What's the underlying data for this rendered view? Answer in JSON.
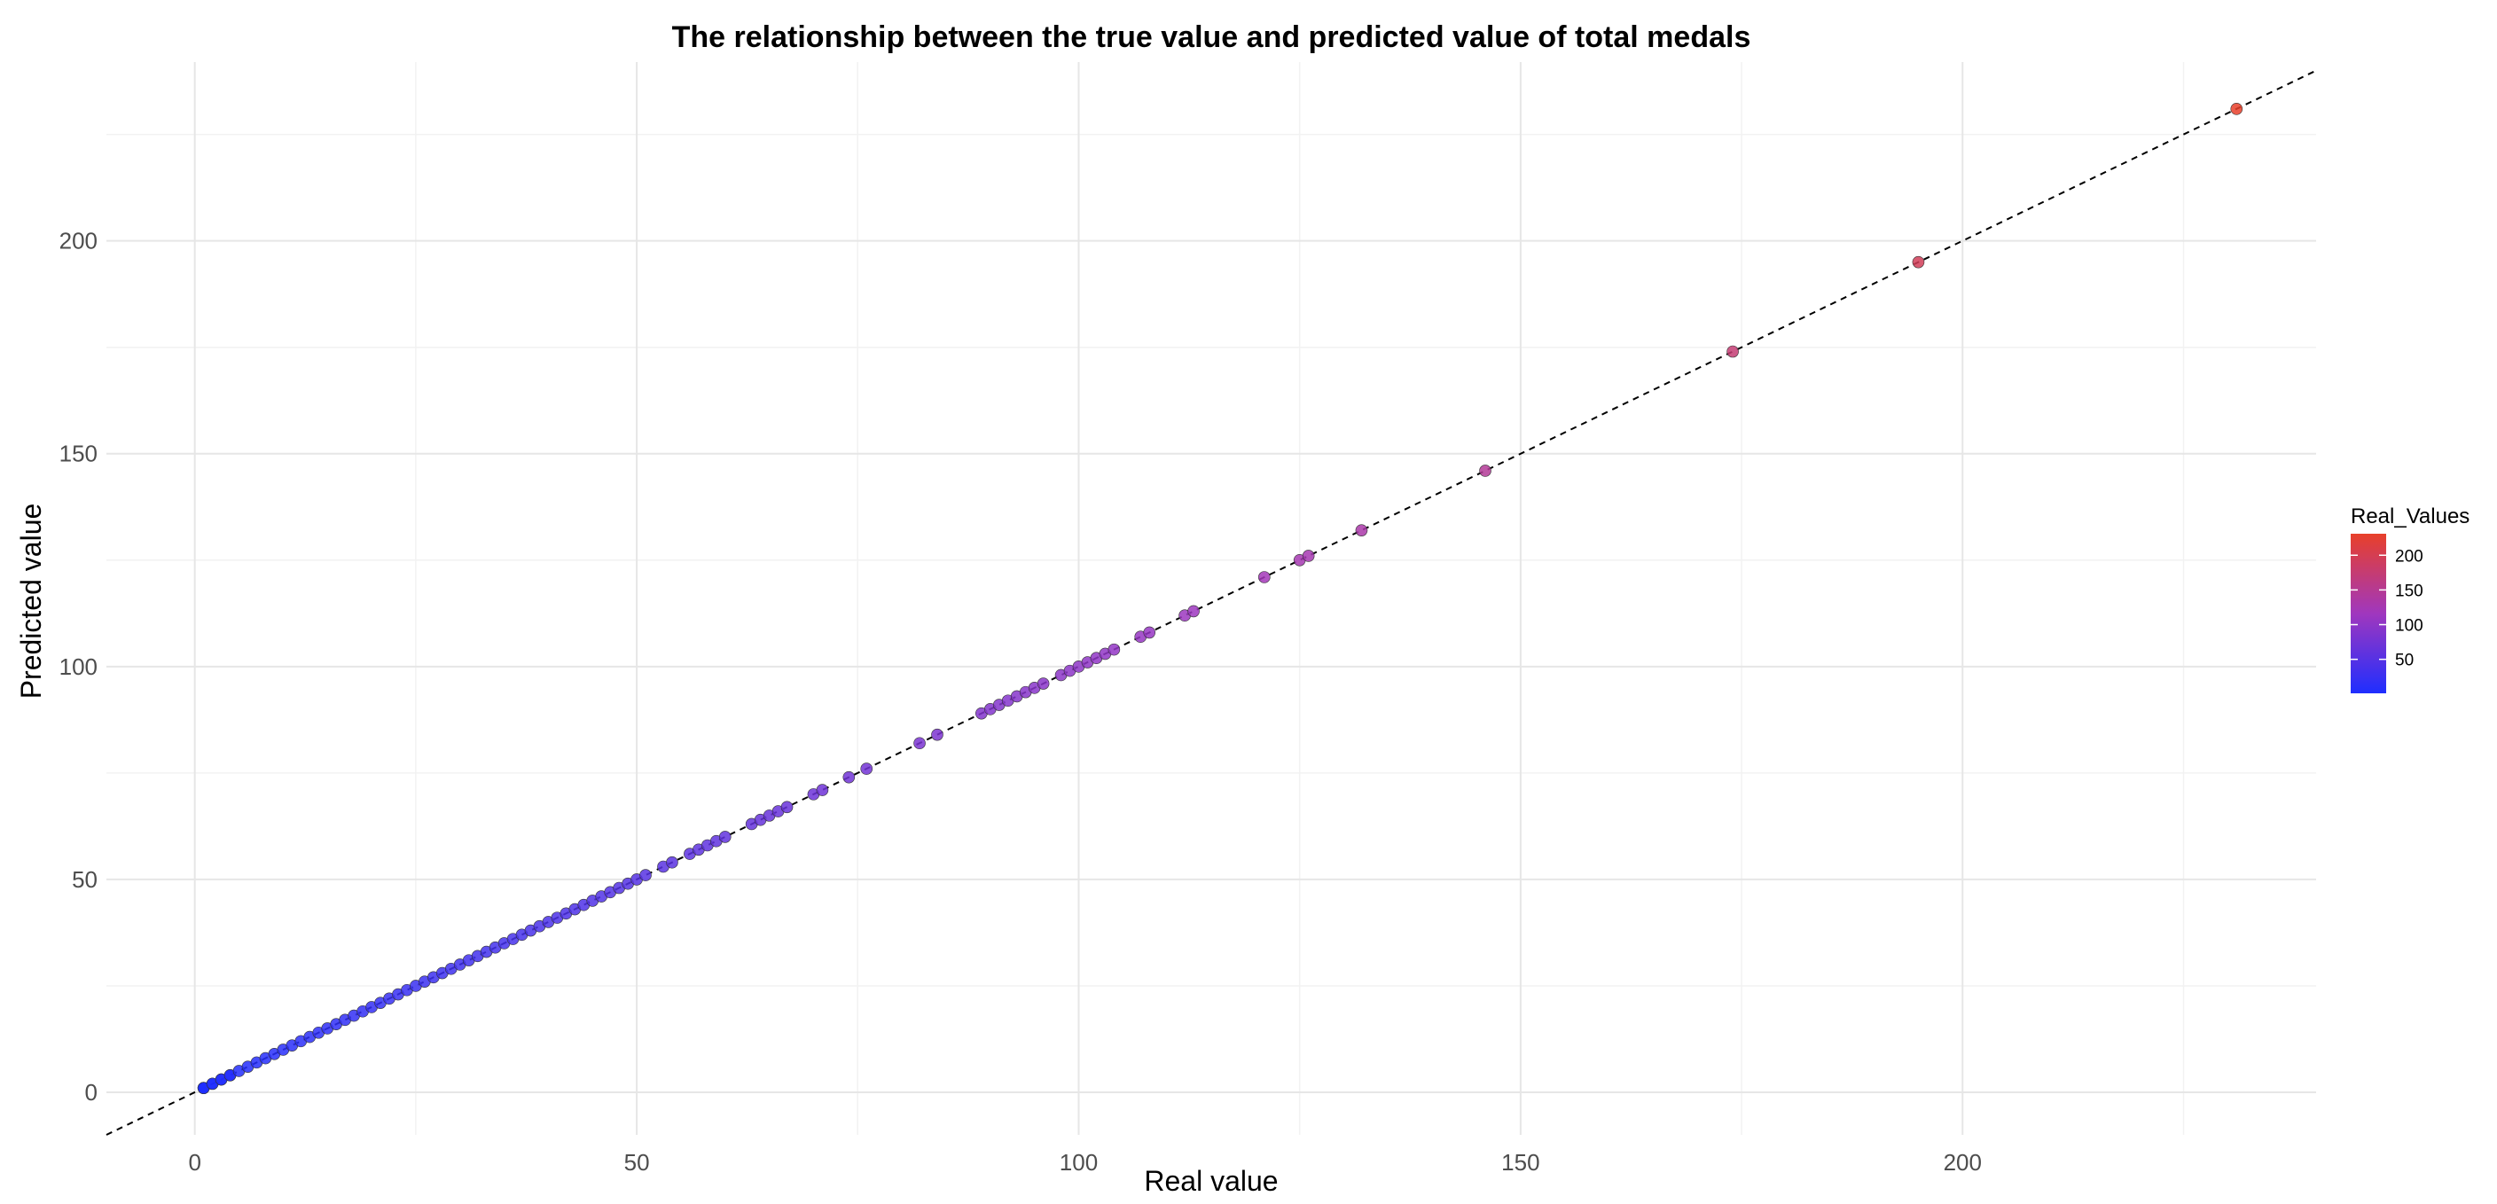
{
  "chart_data": {
    "type": "scatter",
    "title": "The relationship between the true value and predicted value of total medals",
    "xlabel": "Real value",
    "ylabel": "Predicted value",
    "xlim": [
      -10,
      240
    ],
    "ylim": [
      -10,
      242
    ],
    "x_ticks": [
      0,
      50,
      100,
      150,
      200
    ],
    "y_ticks": [
      0,
      50,
      100,
      150,
      200
    ],
    "grid": true,
    "reference_line": {
      "style": "dashed",
      "color": "#000000",
      "slope": 1,
      "intercept": 0
    },
    "legend": {
      "title": "Real_Values",
      "position": "right",
      "type": "colorbar",
      "range": [
        1,
        231
      ],
      "ticks": [
        50,
        100,
        150,
        200
      ],
      "color_low": "#1f2eff",
      "color_high": "#e8402a"
    },
    "series": [
      {
        "x": [
          1,
          1,
          1,
          2,
          2,
          3,
          3,
          4,
          4,
          5,
          6,
          7,
          8,
          9,
          10,
          11,
          12,
          13,
          14,
          15,
          16,
          17,
          18,
          19,
          20,
          21,
          22,
          23,
          24,
          25,
          26,
          27,
          28,
          29,
          30,
          31,
          32,
          33,
          34,
          35,
          36,
          37,
          38,
          39,
          40,
          41,
          42,
          43,
          44,
          45,
          46,
          47,
          48,
          49,
          50,
          51,
          53,
          54,
          56,
          57,
          58,
          59,
          60,
          63,
          64,
          65,
          66,
          67,
          70,
          71,
          74,
          76,
          82,
          84,
          89,
          90,
          91,
          92,
          93,
          94,
          95,
          96,
          98,
          99,
          100,
          101,
          102,
          103,
          104,
          107,
          108,
          112,
          113,
          121,
          125,
          126,
          132,
          146,
          174,
          195,
          231
        ],
        "y": [
          1,
          1,
          1,
          2,
          2,
          3,
          3,
          4,
          4,
          5,
          6,
          7,
          8,
          9,
          10,
          11,
          12,
          13,
          14,
          15,
          16,
          17,
          18,
          19,
          20,
          21,
          22,
          23,
          24,
          25,
          26,
          27,
          28,
          29,
          30,
          31,
          32,
          33,
          34,
          35,
          36,
          37,
          38,
          39,
          40,
          41,
          42,
          43,
          44,
          45,
          46,
          47,
          48,
          49,
          50,
          51,
          53,
          54,
          56,
          57,
          58,
          59,
          60,
          63,
          64,
          65,
          66,
          67,
          70,
          71,
          74,
          76,
          82,
          84,
          89,
          90,
          91,
          92,
          93,
          94,
          95,
          96,
          98,
          99,
          100,
          101,
          102,
          103,
          104,
          107,
          108,
          112,
          113,
          121,
          125,
          126,
          132,
          146,
          174,
          195,
          231
        ]
      }
    ]
  }
}
